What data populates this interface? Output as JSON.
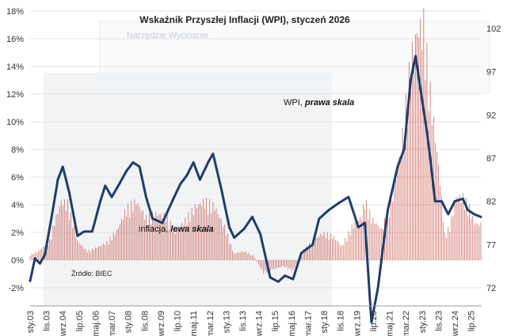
{
  "chart_data": {
    "type": "bar+line",
    "title": "Wskaźnik Przyszłej Inflacji (WPI), styczeń 2026",
    "source": "Źródło: BIEC",
    "left_axis": {
      "ticks": [
        "-2%",
        "0%",
        "2%",
        "4%",
        "6%",
        "8%",
        "10%",
        "12%",
        "14%",
        "16%",
        "18%"
      ],
      "range": [
        -2,
        18
      ],
      "unit": "%"
    },
    "right_axis": {
      "ticks": [
        "72",
        "77",
        "82",
        "87",
        "92",
        "97",
        "102"
      ],
      "range": [
        72,
        104
      ]
    },
    "x_ticks": [
      "sty.03",
      "lis.03",
      "wrz.04",
      "lip.05",
      "maj.06",
      "mar.07",
      "sty.08",
      "lis.08",
      "wrz.09",
      "lip.10",
      "maj.11",
      "mar.12",
      "sty.13",
      "lis.13",
      "wrz.14",
      "lip.15",
      "maj.16",
      "mar.17",
      "sty.18",
      "lis.18",
      "wrz.19",
      "lip.20",
      "maj.21",
      "mar.22",
      "sty.23",
      "lis.23",
      "wrz.24",
      "lip.25"
    ],
    "x_start": "2003-01",
    "x_end": "2026-01",
    "series": [
      {
        "name": "inflacja, lewa skala",
        "type": "bar",
        "axis": "left",
        "color": "#c0392b",
        "label": {
          "prefix": "inflacja, ",
          "suffix": "lewa skala"
        },
        "points": [
          [
            "2003-01",
            0.4
          ],
          [
            "2003-06",
            0.7
          ],
          [
            "2004-01",
            1.5
          ],
          [
            "2004-04",
            3.0
          ],
          [
            "2004-08",
            4.6
          ],
          [
            "2004-12",
            4.4
          ],
          [
            "2005-06",
            1.5
          ],
          [
            "2005-12",
            0.7
          ],
          [
            "2006-06",
            1.0
          ],
          [
            "2006-12",
            1.4
          ],
          [
            "2007-06",
            2.3
          ],
          [
            "2007-12",
            4.0
          ],
          [
            "2008-06",
            4.6
          ],
          [
            "2008-12",
            3.3
          ],
          [
            "2009-06",
            3.6
          ],
          [
            "2009-12",
            3.5
          ],
          [
            "2010-06",
            2.2
          ],
          [
            "2010-12",
            3.1
          ],
          [
            "2011-06",
            4.2
          ],
          [
            "2011-12",
            4.6
          ],
          [
            "2012-06",
            4.2
          ],
          [
            "2012-12",
            2.6
          ],
          [
            "2013-06",
            0.5
          ],
          [
            "2013-12",
            0.7
          ],
          [
            "2014-06",
            0.3
          ],
          [
            "2014-12",
            -1.0
          ],
          [
            "2015-06",
            -0.7
          ],
          [
            "2015-12",
            -0.5
          ],
          [
            "2016-06",
            -0.8
          ],
          [
            "2016-12",
            0.8
          ],
          [
            "2017-06",
            1.5
          ],
          [
            "2017-12",
            2.1
          ],
          [
            "2018-06",
            1.9
          ],
          [
            "2018-12",
            1.1
          ],
          [
            "2019-06",
            2.6
          ],
          [
            "2019-12",
            3.4
          ],
          [
            "2020-02",
            4.7
          ],
          [
            "2020-06",
            3.3
          ],
          [
            "2020-12",
            2.4
          ],
          [
            "2021-06",
            4.4
          ],
          [
            "2021-12",
            8.6
          ],
          [
            "2022-06",
            15.5
          ],
          [
            "2022-10",
            17.9
          ],
          [
            "2023-02",
            18.4
          ],
          [
            "2023-06",
            13.0
          ],
          [
            "2023-12",
            6.2
          ],
          [
            "2024-03",
            2.0
          ],
          [
            "2024-06",
            2.6
          ],
          [
            "2024-10",
            5.0
          ],
          [
            "2025-02",
            4.9
          ],
          [
            "2025-06",
            4.1
          ],
          [
            "2025-09",
            2.9
          ],
          [
            "2026-01",
            2.8
          ]
        ]
      },
      {
        "name": "WPI, prawa skala",
        "type": "line",
        "axis": "right",
        "color": "#1f3d6b",
        "label": {
          "prefix": "WPI, ",
          "suffix": "prawa skala"
        },
        "points": [
          [
            "2003-01",
            72.8
          ],
          [
            "2003-04",
            75.4
          ],
          [
            "2003-07",
            74.8
          ],
          [
            "2003-10",
            75.8
          ],
          [
            "2004-02",
            80.0
          ],
          [
            "2004-06",
            84.5
          ],
          [
            "2004-09",
            86.0
          ],
          [
            "2005-01",
            83.0
          ],
          [
            "2005-06",
            78.0
          ],
          [
            "2005-10",
            78.5
          ],
          [
            "2006-03",
            78.5
          ],
          [
            "2006-08",
            82.0
          ],
          [
            "2006-11",
            83.8
          ],
          [
            "2007-03",
            82.5
          ],
          [
            "2007-07",
            83.8
          ],
          [
            "2007-12",
            85.5
          ],
          [
            "2008-04",
            86.5
          ],
          [
            "2008-08",
            86.0
          ],
          [
            "2008-12",
            82.5
          ],
          [
            "2009-04",
            80.0
          ],
          [
            "2009-10",
            79.5
          ],
          [
            "2010-04",
            82.0
          ],
          [
            "2010-09",
            84.0
          ],
          [
            "2011-01",
            85.0
          ],
          [
            "2011-05",
            86.5
          ],
          [
            "2011-09",
            84.5
          ],
          [
            "2012-02",
            86.5
          ],
          [
            "2012-05",
            87.5
          ],
          [
            "2012-10",
            83.5
          ],
          [
            "2013-03",
            79.0
          ],
          [
            "2013-06",
            77.8
          ],
          [
            "2013-12",
            78.8
          ],
          [
            "2014-05",
            80.2
          ],
          [
            "2014-10",
            78.2
          ],
          [
            "2015-04",
            73.2
          ],
          [
            "2015-09",
            72.7
          ],
          [
            "2016-01",
            73.4
          ],
          [
            "2016-06",
            73.0
          ],
          [
            "2016-11",
            76.0
          ],
          [
            "2017-06",
            77.0
          ],
          [
            "2017-10",
            80.0
          ],
          [
            "2018-04",
            81.0
          ],
          [
            "2018-10",
            81.8
          ],
          [
            "2019-04",
            82.5
          ],
          [
            "2019-10",
            79.0
          ],
          [
            "2020-02",
            79.5
          ],
          [
            "2020-06",
            68.0
          ],
          [
            "2020-10",
            72.0
          ],
          [
            "2021-04",
            81.0
          ],
          [
            "2021-10",
            86.0
          ],
          [
            "2022-02",
            88.0
          ],
          [
            "2022-06",
            96.0
          ],
          [
            "2022-09",
            98.8
          ],
          [
            "2022-12",
            95.0
          ],
          [
            "2023-04",
            90.0
          ],
          [
            "2023-06",
            87.0
          ],
          [
            "2023-09",
            82.0
          ],
          [
            "2024-01",
            82.0
          ],
          [
            "2024-05",
            80.5
          ],
          [
            "2024-09",
            82.0
          ],
          [
            "2025-02",
            82.3
          ],
          [
            "2025-05",
            81.0
          ],
          [
            "2025-09",
            80.5
          ],
          [
            "2026-01",
            80.2
          ]
        ]
      }
    ],
    "grid": true,
    "legend": "none"
  },
  "page": {
    "watermark": "Narzędzie Wycinanie"
  }
}
